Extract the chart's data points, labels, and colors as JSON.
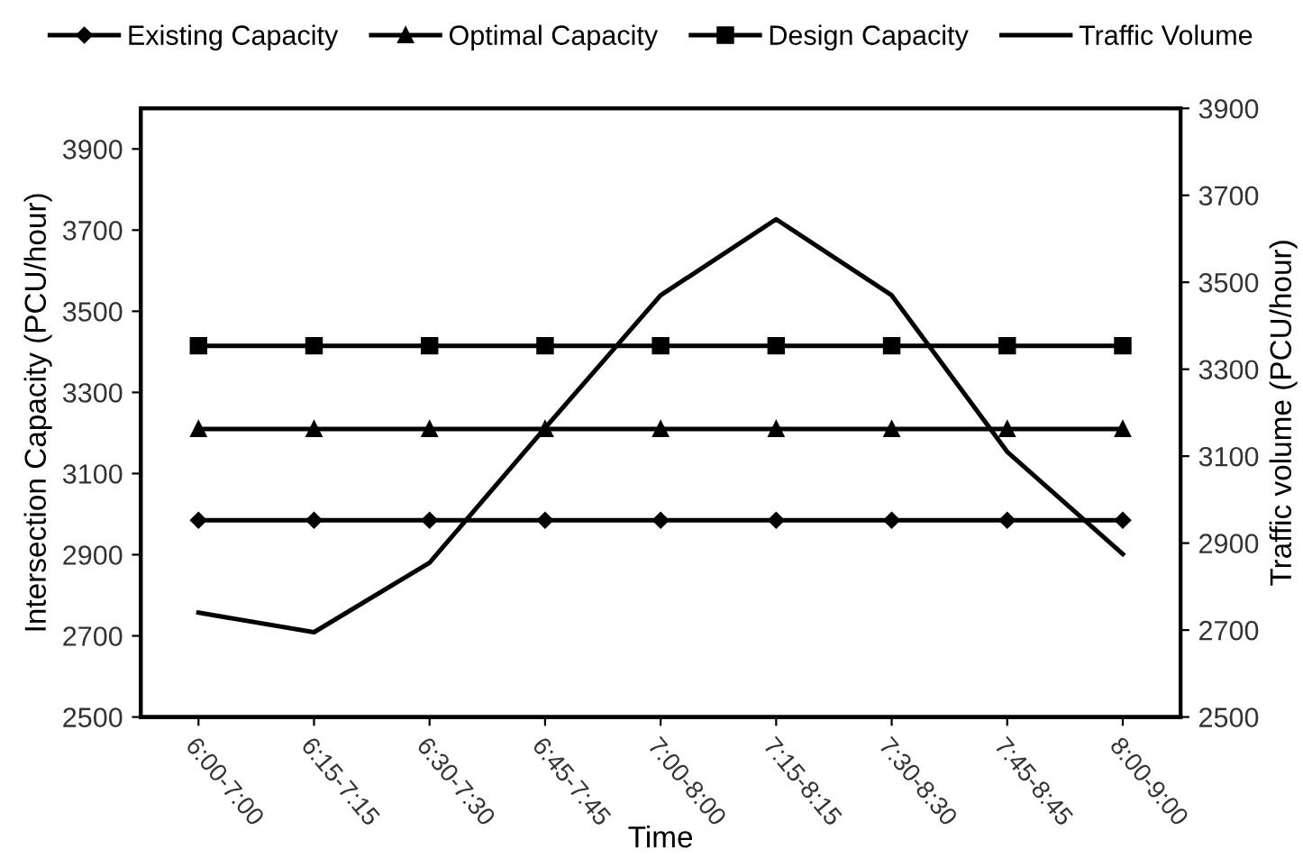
{
  "chart_data": {
    "type": "line",
    "xlabel": "Time",
    "ylabel": "Intersection Capacity (PCU/hour)",
    "y2label": "Traffic volume (PCU/hour)",
    "categories": [
      "6:00-7:00",
      "6:15-7:15",
      "6:30-7:30",
      "6:45-7:45",
      "7:00-8:00",
      "7:15-8:15",
      "7:30-8:30",
      "7:45-8:45",
      "8:00-9:00"
    ],
    "series": [
      {
        "name": "Existing Capacity",
        "color": "#000000",
        "marker": "diamond",
        "values": [
          2985,
          2985,
          2985,
          2985,
          2985,
          2985,
          2985,
          2985,
          2985
        ]
      },
      {
        "name": "Optimal Capacity",
        "color": "#000000",
        "marker": "triangle",
        "values": [
          3210,
          3210,
          3210,
          3210,
          3210,
          3210,
          3210,
          3210,
          3210
        ]
      },
      {
        "name": "Design Capacity",
        "color": "#000000",
        "marker": "square",
        "values": [
          3415,
          3415,
          3415,
          3415,
          3415,
          3415,
          3415,
          3415,
          3415
        ]
      },
      {
        "name": "Traffic Volume",
        "color": "#000000",
        "marker": "none",
        "axis": "y2",
        "values": [
          2740,
          2695,
          2855,
          3165,
          3470,
          3645,
          3470,
          3110,
          2875
        ]
      }
    ],
    "ylim": [
      2500,
      4000
    ],
    "yticks": [
      2500,
      2700,
      2900,
      3100,
      3300,
      3500,
      3700,
      3900
    ],
    "y2lim": [
      2500,
      3900
    ],
    "y2ticks": [
      2500,
      2700,
      2900,
      3100,
      3300,
      3500,
      3700,
      3900
    ],
    "legend": "top",
    "grid": false,
    "line_style": "solid"
  }
}
